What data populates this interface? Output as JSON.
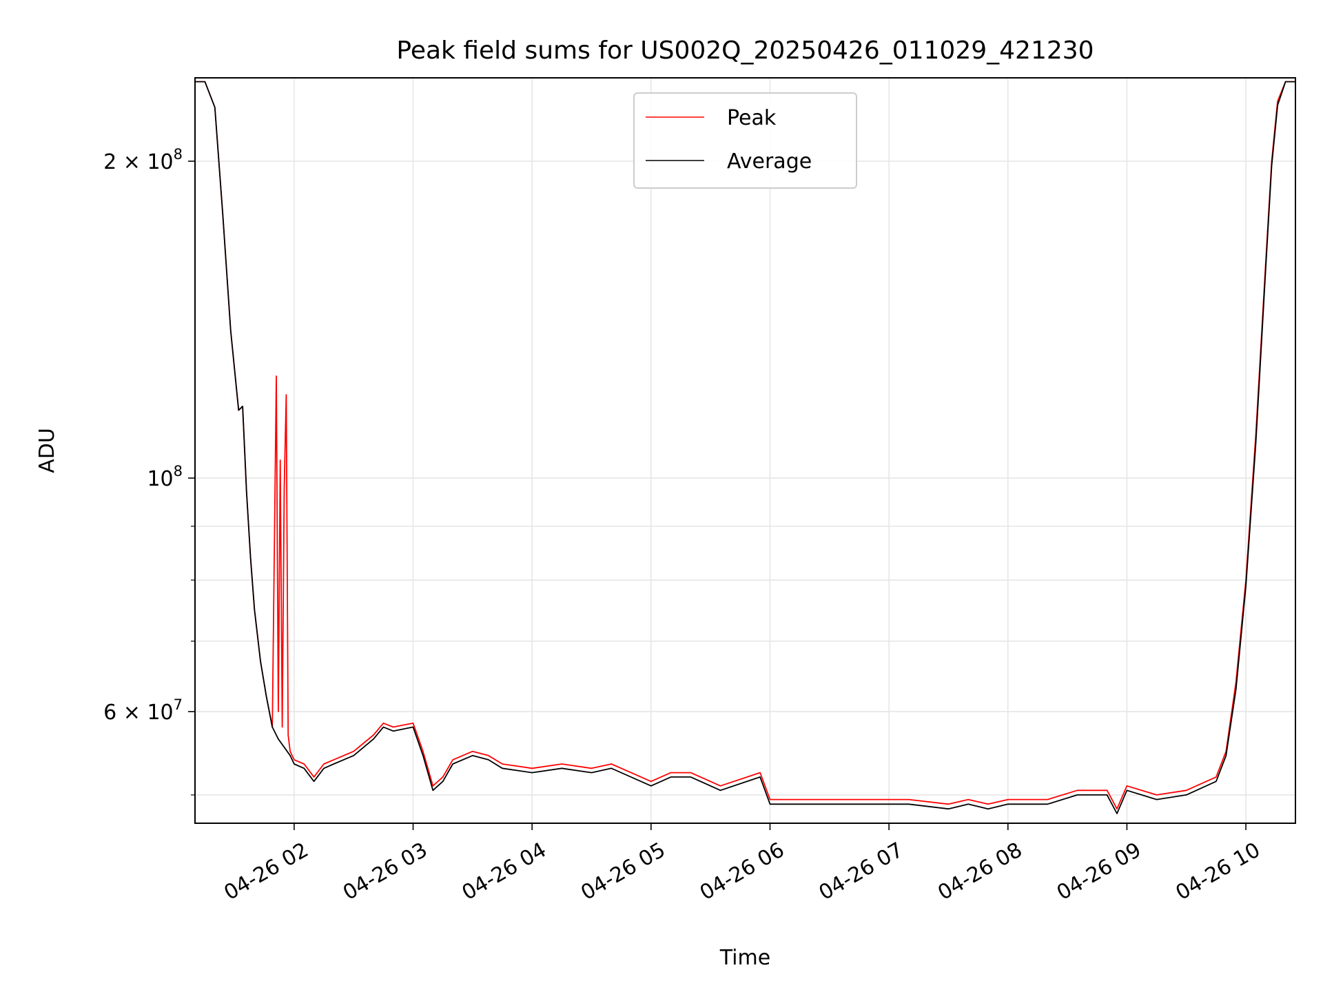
{
  "chart_data": {
    "type": "line",
    "title": "Peak field sums for US002Q_20250426_011029_421230",
    "xlabel": "Time",
    "ylabel": "ADU",
    "xlim": [
      "2025-04-26 01:10",
      "2025-04-26 10:25"
    ],
    "ylim": [
      47000000,
      240000000
    ],
    "yscale": "log",
    "grid": true,
    "legend_position": "upper-center",
    "x_ticks": [
      {
        "value": "2025-04-26 02:00",
        "label": "04-26 02"
      },
      {
        "value": "2025-04-26 03:00",
        "label": "04-26 03"
      },
      {
        "value": "2025-04-26 04:00",
        "label": "04-26 04"
      },
      {
        "value": "2025-04-26 05:00",
        "label": "04-26 05"
      },
      {
        "value": "2025-04-26 06:00",
        "label": "04-26 06"
      },
      {
        "value": "2025-04-26 07:00",
        "label": "04-26 07"
      },
      {
        "value": "2025-04-26 08:00",
        "label": "04-26 08"
      },
      {
        "value": "2025-04-26 09:00",
        "label": "04-26 09"
      },
      {
        "value": "2025-04-26 10:00",
        "label": "04-26 10"
      }
    ],
    "y_major_ticks": [
      {
        "value": 60000000,
        "mantissa": "6",
        "exponent": "7"
      },
      {
        "value": 100000000,
        "mantissa": "",
        "exponent": "8"
      },
      {
        "value": 200000000,
        "mantissa": "2",
        "exponent": "8"
      }
    ],
    "y_minor_ticks": [
      50000000,
      70000000,
      80000000,
      90000000
    ],
    "series": [
      {
        "name": "Peak",
        "color": "#ff0000",
        "x": [
          "2025-04-26 01:10",
          "2025-04-26 01:15",
          "2025-04-26 01:20",
          "2025-04-26 01:24",
          "2025-04-26 01:28",
          "2025-04-26 01:32",
          "2025-04-26 01:34",
          "2025-04-26 01:36",
          "2025-04-26 01:38",
          "2025-04-26 01:40",
          "2025-04-26 01:43",
          "2025-04-26 01:46",
          "2025-04-26 01:49",
          "2025-04-26 01:51",
          "2025-04-26 01:52",
          "2025-04-26 01:53",
          "2025-04-26 01:54",
          "2025-04-26 01:55",
          "2025-04-26 01:56",
          "2025-04-26 01:57",
          "2025-04-26 01:58",
          "2025-04-26 02:00",
          "2025-04-26 02:05",
          "2025-04-26 02:10",
          "2025-04-26 02:15",
          "2025-04-26 02:20",
          "2025-04-26 02:30",
          "2025-04-26 02:40",
          "2025-04-26 02:45",
          "2025-04-26 02:50",
          "2025-04-26 03:00",
          "2025-04-26 03:05",
          "2025-04-26 03:10",
          "2025-04-26 03:15",
          "2025-04-26 03:20",
          "2025-04-26 03:30",
          "2025-04-26 03:38",
          "2025-04-26 03:45",
          "2025-04-26 04:00",
          "2025-04-26 04:15",
          "2025-04-26 04:30",
          "2025-04-26 04:40",
          "2025-04-26 05:00",
          "2025-04-26 05:10",
          "2025-04-26 05:20",
          "2025-04-26 05:35",
          "2025-04-26 05:55",
          "2025-04-26 06:00",
          "2025-04-26 06:15",
          "2025-04-26 06:30",
          "2025-04-26 06:50",
          "2025-04-26 07:10",
          "2025-04-26 07:30",
          "2025-04-26 07:40",
          "2025-04-26 07:50",
          "2025-04-26 08:00",
          "2025-04-26 08:20",
          "2025-04-26 08:35",
          "2025-04-26 08:50",
          "2025-04-26 08:55",
          "2025-04-26 09:00",
          "2025-04-26 09:15",
          "2025-04-26 09:30",
          "2025-04-26 09:45",
          "2025-04-26 09:50",
          "2025-04-26 09:55",
          "2025-04-26 10:00",
          "2025-04-26 10:05",
          "2025-04-26 10:10",
          "2025-04-26 10:13",
          "2025-04-26 10:16",
          "2025-04-26 10:20",
          "2025-04-26 10:25"
        ],
        "values": [
          238000000,
          238000000,
          225000000,
          178000000,
          138000000,
          116000000,
          117000000,
          97000000,
          84000000,
          75000000,
          67000000,
          62000000,
          58000000,
          125000000,
          60000000,
          104000000,
          58000000,
          98000000,
          120000000,
          57000000,
          55000000,
          54000000,
          53500000,
          52000000,
          53500000,
          54000000,
          55000000,
          57000000,
          58500000,
          58000000,
          58500000,
          55000000,
          51000000,
          52000000,
          54000000,
          55000000,
          54500000,
          53500000,
          53000000,
          53500000,
          53000000,
          53500000,
          51500000,
          52500000,
          52500000,
          51000000,
          52500000,
          49500000,
          49500000,
          49500000,
          49500000,
          49500000,
          49000000,
          49500000,
          49000000,
          49500000,
          49500000,
          50500000,
          50500000,
          48500000,
          51000000,
          50000000,
          50500000,
          52000000,
          55000000,
          64000000,
          80000000,
          110000000,
          160000000,
          200000000,
          228000000,
          238000000,
          238000000
        ]
      },
      {
        "name": "Average",
        "color": "#000000",
        "x": [
          "2025-04-26 01:10",
          "2025-04-26 01:15",
          "2025-04-26 01:20",
          "2025-04-26 01:24",
          "2025-04-26 01:28",
          "2025-04-26 01:32",
          "2025-04-26 01:34",
          "2025-04-26 01:36",
          "2025-04-26 01:38",
          "2025-04-26 01:40",
          "2025-04-26 01:43",
          "2025-04-26 01:46",
          "2025-04-26 01:49",
          "2025-04-26 01:52",
          "2025-04-26 01:55",
          "2025-04-26 01:58",
          "2025-04-26 02:00",
          "2025-04-26 02:05",
          "2025-04-26 02:10",
          "2025-04-26 02:15",
          "2025-04-26 02:20",
          "2025-04-26 02:30",
          "2025-04-26 02:40",
          "2025-04-26 02:45",
          "2025-04-26 02:50",
          "2025-04-26 03:00",
          "2025-04-26 03:05",
          "2025-04-26 03:10",
          "2025-04-26 03:15",
          "2025-04-26 03:20",
          "2025-04-26 03:30",
          "2025-04-26 03:38",
          "2025-04-26 03:45",
          "2025-04-26 04:00",
          "2025-04-26 04:15",
          "2025-04-26 04:30",
          "2025-04-26 04:40",
          "2025-04-26 05:00",
          "2025-04-26 05:10",
          "2025-04-26 05:20",
          "2025-04-26 05:35",
          "2025-04-26 05:55",
          "2025-04-26 06:00",
          "2025-04-26 06:15",
          "2025-04-26 06:30",
          "2025-04-26 06:50",
          "2025-04-26 07:10",
          "2025-04-26 07:30",
          "2025-04-26 07:40",
          "2025-04-26 07:50",
          "2025-04-26 08:00",
          "2025-04-26 08:20",
          "2025-04-26 08:35",
          "2025-04-26 08:50",
          "2025-04-26 08:55",
          "2025-04-26 09:00",
          "2025-04-26 09:15",
          "2025-04-26 09:30",
          "2025-04-26 09:45",
          "2025-04-26 09:50",
          "2025-04-26 09:55",
          "2025-04-26 10:00",
          "2025-04-26 10:05",
          "2025-04-26 10:10",
          "2025-04-26 10:13",
          "2025-04-26 10:16",
          "2025-04-26 10:20",
          "2025-04-26 10:25"
        ],
        "values": [
          238000000,
          238000000,
          225000000,
          178000000,
          138000000,
          116000000,
          117000000,
          97000000,
          84000000,
          75000000,
          67000000,
          62000000,
          58000000,
          56500000,
          55500000,
          54500000,
          53500000,
          53000000,
          51500000,
          53000000,
          53500000,
          54500000,
          56500000,
          58000000,
          57500000,
          58000000,
          54500000,
          50500000,
          51500000,
          53500000,
          54500000,
          54000000,
          53000000,
          52500000,
          53000000,
          52500000,
          53000000,
          51000000,
          52000000,
          52000000,
          50500000,
          52000000,
          49000000,
          49000000,
          49000000,
          49000000,
          49000000,
          48500000,
          49000000,
          48500000,
          49000000,
          49000000,
          50000000,
          50000000,
          48000000,
          50500000,
          49500000,
          50000000,
          51500000,
          54500000,
          63000000,
          79000000,
          108000000,
          158000000,
          198000000,
          226000000,
          238000000,
          238000000
        ]
      }
    ]
  }
}
